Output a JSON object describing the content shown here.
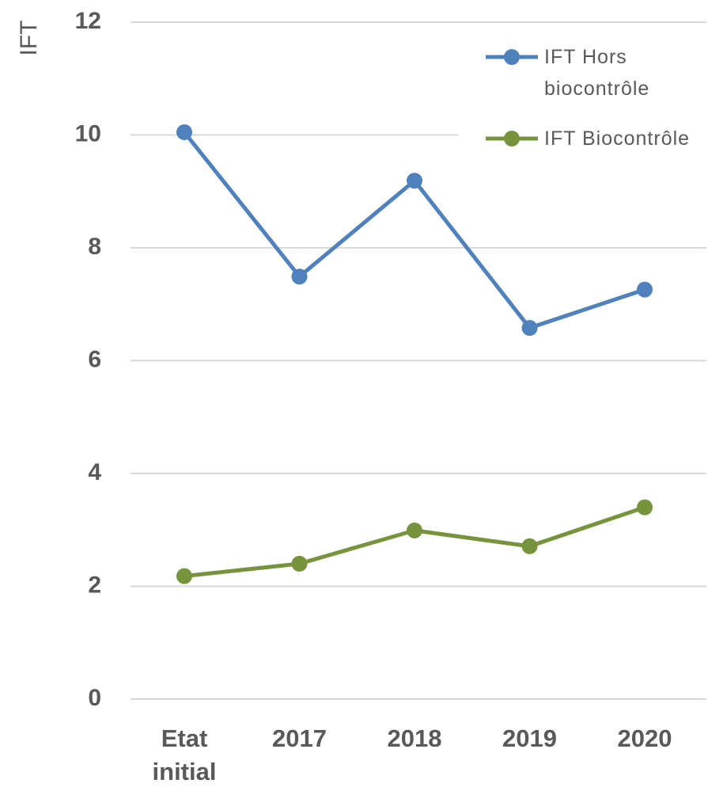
{
  "chart_data": {
    "type": "line",
    "y_label": "IFT",
    "categories": [
      "Etat initial",
      "2017",
      "2018",
      "2019",
      "2020"
    ],
    "series": [
      {
        "name": "IFT Hors biocontrôle",
        "color": "#4f81bd",
        "values": [
          10.05,
          7.49,
          9.19,
          6.58,
          7.26
        ]
      },
      {
        "name": "IFT Biocontrôle",
        "color": "#77933c",
        "values": [
          2.18,
          2.4,
          2.99,
          2.71,
          3.4
        ]
      }
    ],
    "ylim": [
      0,
      12
    ],
    "yticks": [
      0,
      2,
      4,
      6,
      8,
      10,
      12
    ],
    "grid": true,
    "legend": "upper right"
  }
}
